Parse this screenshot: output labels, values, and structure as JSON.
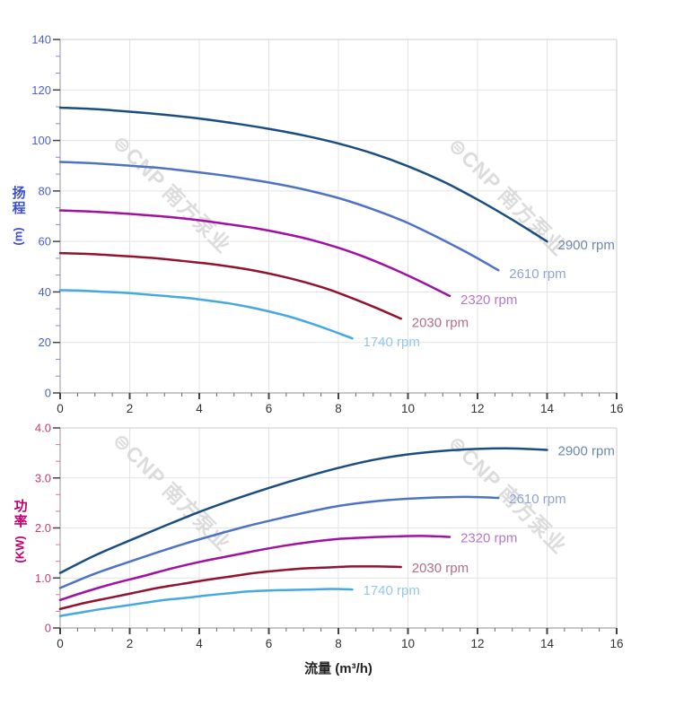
{
  "watermark": {
    "logo": "⊜",
    "text": "CNP 南方泵业",
    "color": "#d6d6d6"
  },
  "frame_colors": {
    "grid": "#e3e3e3",
    "border": "#d5d5d5",
    "axis": "#a8a8a8",
    "major_tick": "#444444"
  },
  "xtitle_color": "#222222",
  "chart_data": [
    {
      "type": "line",
      "title": "",
      "xlabel": "",
      "ylabel": "扬程 (m)",
      "ylabel_cjk": "扬程",
      "ylabel_unit": "(m)",
      "axis_title_color": "#3c50cc",
      "y_tick_color": "#4a5fd4",
      "y_minor_tick_color": "#7b8fd4",
      "x_tick_color": "#333333",
      "xlim": [
        0,
        16
      ],
      "ylim": [
        0,
        140
      ],
      "x_ticks": [
        0,
        2,
        4,
        6,
        8,
        10,
        12,
        14,
        16
      ],
      "x_tick_labels": [
        "0",
        "2",
        "4",
        "6",
        "8",
        "10",
        "12",
        "14",
        "16"
      ],
      "y_ticks": [
        0,
        20,
        40,
        60,
        80,
        100,
        120,
        140
      ],
      "y_tick_labels": [
        "0",
        "20",
        "40",
        "60",
        "80",
        "100",
        "120",
        "140"
      ],
      "x_minor_step": 0.5,
      "y_minor_div": 3,
      "grid": true,
      "legend_position": "curve-end-labels",
      "series": [
        {
          "name": "2900 rpm",
          "color": "#1a4d82",
          "label_color": "#6b88ae",
          "x": [
            0,
            1,
            2,
            3,
            4,
            5,
            6,
            7,
            8,
            9,
            10,
            11,
            12,
            13,
            14
          ],
          "y": [
            113,
            112.4,
            111.4,
            110.2,
            108.7,
            106.8,
            104.6,
            102,
            98.8,
            94.8,
            89.8,
            83.8,
            76.6,
            68.6,
            60
          ]
        },
        {
          "name": "2610 rpm",
          "color": "#4e72c4",
          "label_color": "#8fa3d8",
          "x": [
            0,
            0.9,
            1.8,
            2.7,
            3.6,
            4.5,
            5.4,
            6.3,
            7.2,
            8.1,
            9,
            9.9,
            10.8,
            11.7,
            12.6
          ],
          "y": [
            91.5,
            91,
            90.2,
            89.3,
            88,
            86.5,
            84.7,
            82.6,
            80,
            76.8,
            72.7,
            67.9,
            62,
            55.6,
            48.6
          ]
        },
        {
          "name": "2320 rpm",
          "color": "#a011a2",
          "label_color": "#b878c8",
          "x": [
            0,
            0.8,
            1.6,
            2.4,
            3.2,
            4,
            4.8,
            5.6,
            6.4,
            7.2,
            8,
            8.8,
            9.6,
            10.4,
            11.2
          ],
          "y": [
            72.3,
            71.9,
            71.3,
            70.5,
            69.6,
            68.4,
            66.9,
            65.3,
            63.2,
            60.7,
            57.5,
            53.6,
            49,
            43.9,
            38.4
          ]
        },
        {
          "name": "2030 rpm",
          "color": "#93122f",
          "label_color": "#b36e85",
          "x": [
            0,
            0.7,
            1.4,
            2.1,
            2.8,
            3.5,
            4.2,
            4.9,
            5.6,
            6.3,
            7,
            7.7,
            8.4,
            9.1,
            9.8
          ],
          "y": [
            55.4,
            55.1,
            54.6,
            54,
            53.3,
            52.3,
            51.3,
            50,
            48.4,
            46.4,
            44,
            41.1,
            37.5,
            33.6,
            29.4
          ]
        },
        {
          "name": "1740 rpm",
          "color": "#45a8e0",
          "label_color": "#93c8ec",
          "x": [
            0,
            0.6,
            1.2,
            1.8,
            2.4,
            3,
            3.6,
            4.2,
            4.8,
            5.4,
            6,
            6.6,
            7.2,
            7.8,
            8.4
          ],
          "y": [
            40.7,
            40.5,
            40.1,
            39.7,
            39.1,
            38.4,
            37.7,
            36.7,
            35.6,
            34.1,
            32.3,
            30.2,
            27.6,
            24.7,
            21.6
          ]
        }
      ]
    },
    {
      "type": "line",
      "title": "",
      "xlabel": "流量 (m³/h)",
      "ylabel": "功率 (KW)",
      "ylabel_cjk": "功率",
      "ylabel_unit": "(KW)",
      "axis_title_color": "#c2006e",
      "y_tick_color": "#cc3a6a",
      "y_minor_tick_color": "#e070a8",
      "x_tick_color": "#333333",
      "xlim": [
        0,
        16
      ],
      "ylim": [
        0,
        4
      ],
      "x_ticks": [
        0,
        2,
        4,
        6,
        8,
        10,
        12,
        14,
        16
      ],
      "x_tick_labels": [
        "0",
        "2",
        "4",
        "6",
        "8",
        "10",
        "12",
        "14",
        "16"
      ],
      "y_ticks": [
        0,
        1,
        2,
        3,
        4
      ],
      "y_tick_labels": [
        "0",
        "1.0",
        "2.0",
        "3.0",
        "4.0"
      ],
      "x_minor_step": 0.5,
      "y_minor_div": 3,
      "grid": true,
      "legend_position": "curve-end-labels",
      "series": [
        {
          "name": "2900 rpm",
          "color": "#1a4d82",
          "label_color": "#6b88ae",
          "x": [
            0,
            1,
            2,
            3,
            4,
            5,
            6,
            7,
            8,
            9,
            10,
            11,
            12,
            13,
            14
          ],
          "y": [
            1.1,
            1.45,
            1.75,
            2.04,
            2.32,
            2.57,
            2.8,
            3.01,
            3.2,
            3.36,
            3.47,
            3.54,
            3.58,
            3.59,
            3.56
          ]
        },
        {
          "name": "2610 rpm",
          "color": "#4e72c4",
          "label_color": "#8fa3d8",
          "x": [
            0,
            0.9,
            1.8,
            2.7,
            3.6,
            4.5,
            5.4,
            6.3,
            7.2,
            8.1,
            9,
            9.9,
            10.8,
            11.7,
            12.6
          ],
          "y": [
            0.8,
            1.06,
            1.28,
            1.49,
            1.69,
            1.87,
            2.04,
            2.19,
            2.33,
            2.45,
            2.53,
            2.58,
            2.61,
            2.62,
            2.6
          ]
        },
        {
          "name": "2320 rpm",
          "color": "#a011a2",
          "label_color": "#b878c8",
          "x": [
            0,
            0.8,
            1.6,
            2.4,
            3.2,
            4,
            4.8,
            5.6,
            6.4,
            7.2,
            8,
            8.8,
            9.6,
            10.4,
            11.2
          ],
          "y": [
            0.56,
            0.74,
            0.9,
            1.04,
            1.19,
            1.32,
            1.43,
            1.54,
            1.64,
            1.72,
            1.78,
            1.81,
            1.83,
            1.84,
            1.82
          ]
        },
        {
          "name": "2030 rpm",
          "color": "#93122f",
          "label_color": "#b36e85",
          "x": [
            0,
            0.7,
            1.4,
            2.1,
            2.8,
            3.5,
            4.2,
            4.9,
            5.6,
            6.3,
            7,
            7.7,
            8.4,
            9.1,
            9.8
          ],
          "y": [
            0.38,
            0.5,
            0.6,
            0.7,
            0.8,
            0.88,
            0.96,
            1.03,
            1.1,
            1.15,
            1.19,
            1.21,
            1.23,
            1.23,
            1.22
          ]
        },
        {
          "name": "1740 rpm",
          "color": "#45a8e0",
          "label_color": "#93c8ec",
          "x": [
            0,
            0.6,
            1.2,
            1.8,
            2.4,
            3,
            3.6,
            4.2,
            4.8,
            5.4,
            6,
            6.6,
            7.2,
            7.8,
            8.4
          ],
          "y": [
            0.24,
            0.31,
            0.38,
            0.44,
            0.5,
            0.56,
            0.6,
            0.65,
            0.69,
            0.73,
            0.75,
            0.76,
            0.77,
            0.78,
            0.77
          ]
        }
      ]
    }
  ]
}
